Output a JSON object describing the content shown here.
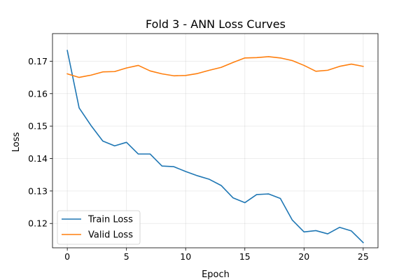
{
  "chart_data": {
    "type": "line",
    "title": "Fold 3 - ANN Loss Curves",
    "xlabel": "Epoch",
    "ylabel": "Loss",
    "xlim": [
      -1.25,
      26.25
    ],
    "ylim": [
      0.1125,
      0.1785
    ],
    "xticks": [
      0,
      5,
      10,
      15,
      20,
      25
    ],
    "yticks": [
      0.12,
      0.13,
      0.14,
      0.15,
      0.16,
      0.17
    ],
    "xtick_labels": [
      "0",
      "5",
      "10",
      "15",
      "20",
      "25"
    ],
    "ytick_labels": [
      "0.12",
      "0.13",
      "0.14",
      "0.15",
      "0.16",
      "0.17"
    ],
    "grid": true,
    "legend_position": "lower-left",
    "x": [
      0,
      1,
      2,
      3,
      4,
      5,
      6,
      7,
      8,
      9,
      10,
      11,
      12,
      13,
      14,
      15,
      16,
      17,
      18,
      19,
      20,
      21,
      22,
      23,
      24,
      25
    ],
    "series": [
      {
        "name": "Train Loss",
        "color": "#1f77b4",
        "values": [
          0.1733,
          0.1556,
          0.1502,
          0.1454,
          0.1439,
          0.145,
          0.1414,
          0.1414,
          0.1377,
          0.1375,
          0.136,
          0.1347,
          0.1336,
          0.1317,
          0.1279,
          0.1264,
          0.1289,
          0.1291,
          0.1277,
          0.1211,
          0.1174,
          0.1178,
          0.1168,
          0.1188,
          0.1177,
          0.1141
        ]
      },
      {
        "name": "Valid Loss",
        "color": "#ff7f0e",
        "values": [
          0.1661,
          0.165,
          0.1657,
          0.1667,
          0.1668,
          0.1679,
          0.1687,
          0.167,
          0.1661,
          0.1655,
          0.1656,
          0.1662,
          0.1672,
          0.1681,
          0.1696,
          0.171,
          0.1711,
          0.1714,
          0.171,
          0.1702,
          0.1687,
          0.1669,
          0.1672,
          0.1684,
          0.1691,
          0.1684
        ]
      }
    ]
  }
}
